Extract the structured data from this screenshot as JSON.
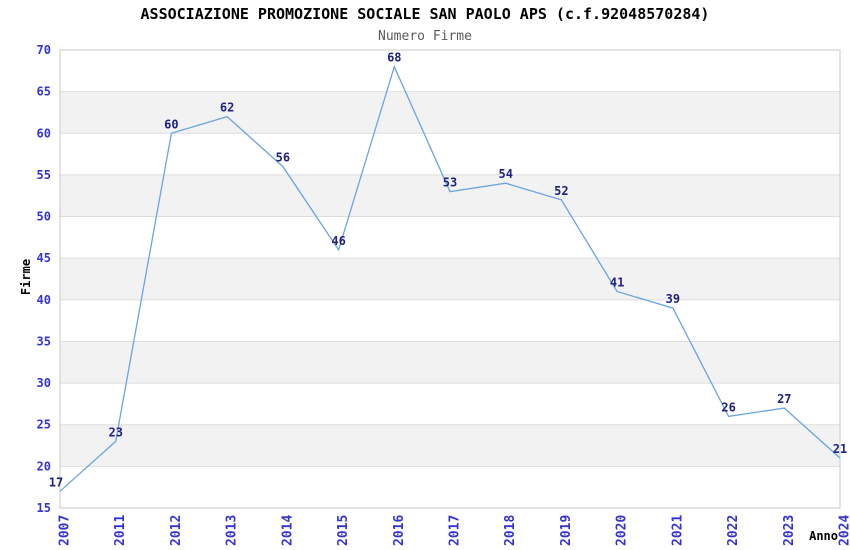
{
  "chart_data": {
    "type": "line",
    "title": "ASSOCIAZIONE PROMOZIONE SOCIALE SAN PAOLO APS (c.f.92048570284)",
    "subtitle": "Numero Firme",
    "xlabel": "Anno",
    "ylabel": "Firme",
    "categories": [
      "2007",
      "2011",
      "2012",
      "2013",
      "2014",
      "2015",
      "2016",
      "2017",
      "2018",
      "2019",
      "2020",
      "2021",
      "2022",
      "2023",
      "2024"
    ],
    "values": [
      17,
      23,
      60,
      62,
      56,
      46,
      68,
      53,
      54,
      52,
      41,
      39,
      26,
      27,
      21
    ],
    "ylim": [
      15,
      70
    ],
    "ytick_step": 5,
    "grid": "horizontal",
    "bands": "alternating-5-unit-horizontal",
    "legend": "none",
    "markers": "none",
    "x_tick_rotation_deg": 90,
    "colors": {
      "line": "#6ba3e3",
      "tick_label": "#3434d0",
      "value_label": "#22227e",
      "band": "#f2f2f2",
      "gridline": "#dedede",
      "plot_border": "#c9c9c9",
      "title": "#000000",
      "subtitle": "#5a5a5a",
      "axis_title": "#000000",
      "background": "#ffffff"
    }
  }
}
